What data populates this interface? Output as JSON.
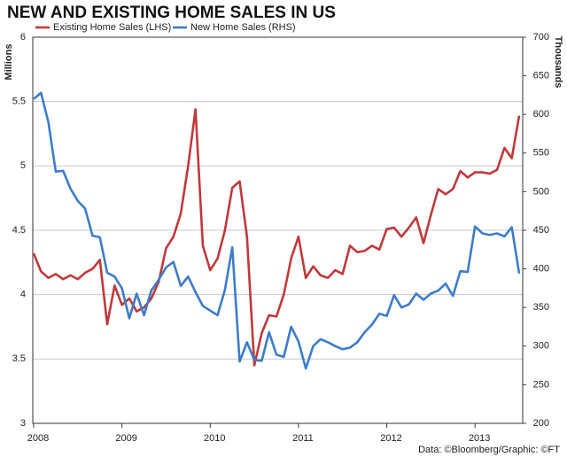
{
  "chart_data": {
    "type": "line",
    "title": "NEW AND EXISTING HOME SALES IN US",
    "y_label": "Millions",
    "y2_label": "Thousands",
    "source": "Data: ©Bloomberg/Graphic: ©FT",
    "categories": [
      "2008",
      null,
      null,
      null,
      null,
      null,
      null,
      null,
      null,
      null,
      null,
      null,
      "2009",
      null,
      null,
      null,
      null,
      null,
      null,
      null,
      null,
      null,
      null,
      null,
      "2010",
      null,
      null,
      null,
      null,
      null,
      null,
      null,
      null,
      null,
      null,
      null,
      "2011",
      null,
      null,
      null,
      null,
      null,
      null,
      null,
      null,
      null,
      null,
      null,
      "2012",
      null,
      null,
      null,
      null,
      null,
      null,
      null,
      null,
      null,
      null,
      null,
      "2013",
      null,
      null,
      null,
      null,
      null,
      null
    ],
    "series": [
      {
        "name": "Existing Home Sales (LHS)",
        "color": "#c0393b",
        "axis": "y",
        "values": [
          4.32,
          4.18,
          4.13,
          4.16,
          4.12,
          4.15,
          4.12,
          4.17,
          4.2,
          4.27,
          3.77,
          4.07,
          3.92,
          3.97,
          3.87,
          3.9,
          3.97,
          4.1,
          4.36,
          4.45,
          4.63,
          5.0,
          5.44,
          4.38,
          4.19,
          4.28,
          4.5,
          4.83,
          4.88,
          4.45,
          3.45,
          3.7,
          3.84,
          3.83,
          4.0,
          4.28,
          4.45,
          4.13,
          4.22,
          4.15,
          4.13,
          4.19,
          4.16,
          4.38,
          4.33,
          4.34,
          4.38,
          4.35,
          4.51,
          4.52,
          4.45,
          4.52,
          4.6,
          4.4,
          4.62,
          4.82,
          4.78,
          4.82,
          4.96,
          4.91,
          4.95,
          4.95,
          4.94,
          4.97,
          5.14,
          5.06,
          5.39
        ]
      },
      {
        "name": "New Home Sales (RHS)",
        "color": "#3d7cc9",
        "axis": "y2",
        "values": [
          620,
          628,
          590,
          526,
          527,
          504,
          488,
          478,
          443,
          441,
          395,
          390,
          375,
          336,
          368,
          340,
          372,
          386,
          402,
          409,
          378,
          390,
          370,
          352,
          346,
          340,
          373,
          428,
          280,
          305,
          282,
          281,
          318,
          289,
          286,
          325,
          306,
          271,
          300,
          309,
          305,
          300,
          296,
          298,
          305,
          318,
          328,
          342,
          339,
          366,
          350,
          354,
          368,
          360,
          368,
          372,
          381,
          365,
          397,
          396,
          455,
          446,
          444,
          446,
          442,
          454,
          394
        ]
      }
    ],
    "ylim": [
      3,
      6
    ],
    "yticks": [
      3,
      3.5,
      4,
      4.5,
      5,
      5.5,
      6
    ],
    "y2lim": [
      200,
      700
    ],
    "y2ticks": [
      200,
      250,
      300,
      350,
      400,
      450,
      500,
      550,
      600,
      650,
      700
    ],
    "grid": true
  }
}
